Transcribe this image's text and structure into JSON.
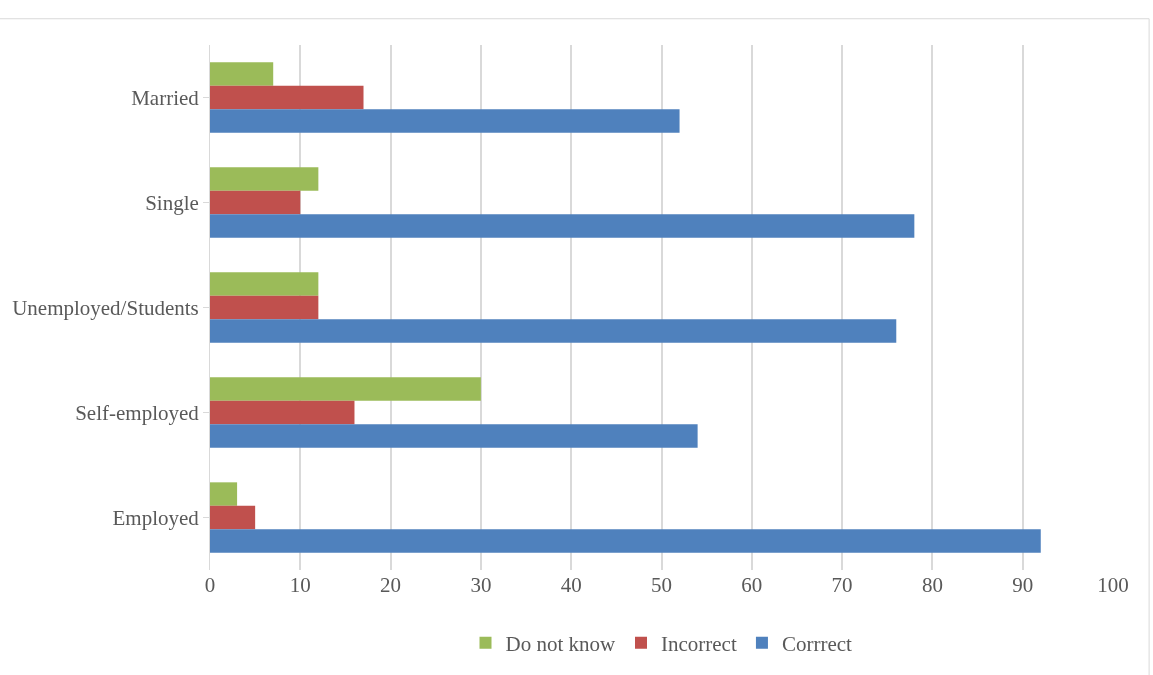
{
  "chart_data": {
    "type": "bar",
    "orientation": "horizontal",
    "categories": [
      "Married",
      "Single",
      "Unemployed/Students",
      "Self-employed",
      "Employed"
    ],
    "series": [
      {
        "name": "Do not know",
        "color": "#9bbb59",
        "values": [
          7,
          12,
          12,
          30,
          3
        ]
      },
      {
        "name": "Incorrect",
        "color": "#c0504d",
        "values": [
          17,
          10,
          12,
          16,
          5
        ]
      },
      {
        "name": "Corrrect",
        "color": "#4f81bd",
        "values": [
          52,
          78,
          76,
          54,
          92
        ]
      }
    ],
    "xlim": [
      0,
      100
    ],
    "xticks": [
      0,
      10,
      20,
      30,
      40,
      50,
      60,
      70,
      80,
      90,
      100
    ],
    "grid": "x",
    "legend": "bottom"
  }
}
